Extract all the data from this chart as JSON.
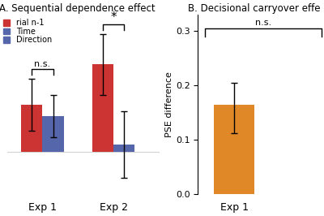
{
  "panel_a_title": "A. Sequential dependence effect",
  "panel_b_title": "B. Decisional carryover effe",
  "panel_a": {
    "categories": [
      "Exp 1",
      "Exp 2"
    ],
    "red_values": [
      0.2,
      0.37
    ],
    "blue_values": [
      0.15,
      0.03
    ],
    "red_errors": [
      0.11,
      0.13
    ],
    "blue_errors": [
      0.09,
      0.14
    ],
    "red_color": "#cc3333",
    "blue_color": "#5566aa",
    "ylim": [
      -0.18,
      0.58
    ],
    "legend_labels": [
      "rial n-1",
      "Time",
      "Direction"
    ],
    "legend_red_color": "#cc3333",
    "legend_blue_color": "#5566aa",
    "sig1_label": "n.s.",
    "sig2_label": "*"
  },
  "panel_b": {
    "category": "Exp 1",
    "value": 0.165,
    "error_upper": 0.04,
    "error_lower": 0.052,
    "bar_color": "#e08828",
    "ylim": [
      0.0,
      0.33
    ],
    "yticks": [
      0.0,
      0.1,
      0.2,
      0.3
    ],
    "ylabel": "PSE difference",
    "sig_label": "n.s."
  }
}
